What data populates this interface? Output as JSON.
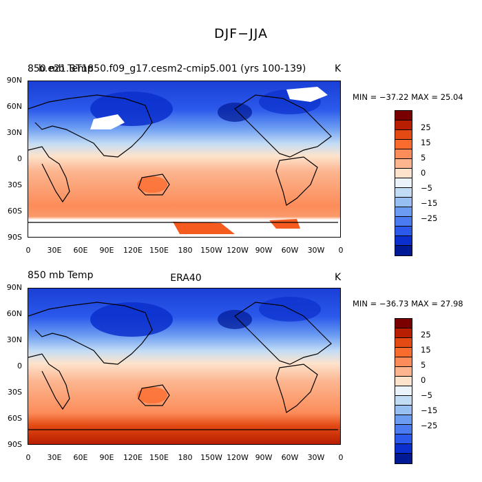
{
  "figure": {
    "title": "DJF−JJA"
  },
  "axes": {
    "lat_labels": [
      "90N",
      "60N",
      "30N",
      "0",
      "30S",
      "60S",
      "90S"
    ],
    "lon_labels": [
      "0",
      "30E",
      "60E",
      "90E",
      "120E",
      "150E",
      "180",
      "150W",
      "120W",
      "90W",
      "60W",
      "30W",
      "0"
    ]
  },
  "panels": [
    {
      "left_title": "850 mb Temp",
      "overlap_title": "b.e21.BT1850.f09_g17.cesm2-cmip5.001 (yrs 100-139)",
      "center_title": "",
      "units": "K",
      "stats": "MIN = −37.22 MAX =  25.04"
    },
    {
      "left_title": "850 mb Temp",
      "overlap_title": "",
      "center_title": "ERA40",
      "units": "K",
      "stats": "MIN = −36.73 MAX =  27.98"
    }
  ],
  "colorbar": {
    "colors": [
      "#7a0000",
      "#b81e00",
      "#e34a14",
      "#fa6b2e",
      "#fc8c59",
      "#fcb58f",
      "#fde3cc",
      "#eaf2fa",
      "#c2dcf5",
      "#98bff2",
      "#6b9cf2",
      "#4a7bf0",
      "#2b59eb",
      "#0b2fcc",
      "#001a96"
    ],
    "labels": [
      "25",
      "15",
      "5",
      "0",
      "−5",
      "−15",
      "−25"
    ]
  }
}
